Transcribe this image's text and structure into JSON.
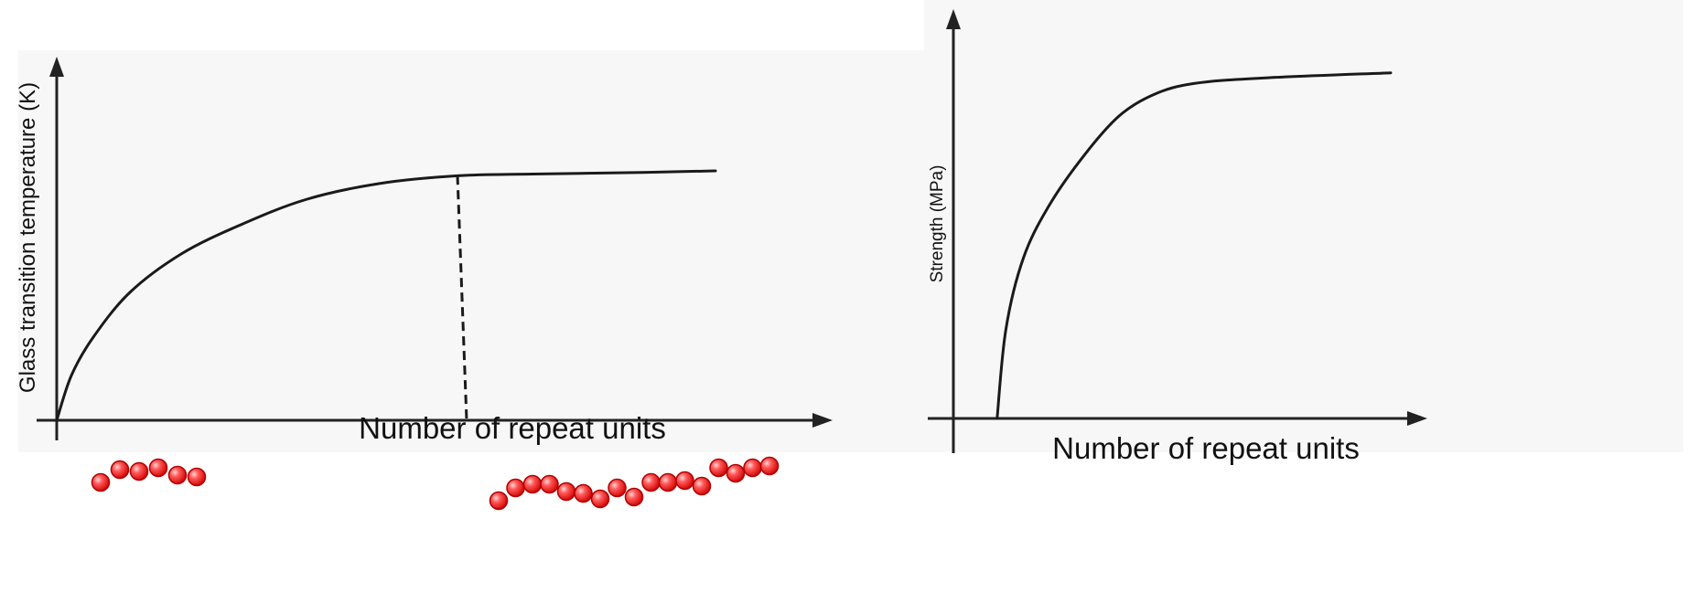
{
  "chart_data": [
    {
      "type": "line",
      "xlabel": "Number of repeat units",
      "ylabel": "Glass transition temperature (K)",
      "xlim": [
        0,
        1
      ],
      "ylim": [
        0,
        1
      ],
      "grid": false,
      "series": [
        {
          "x": [
            0.0,
            0.02,
            0.05,
            0.1,
            0.17,
            0.25,
            0.34,
            0.44,
            0.55,
            0.65,
            0.8,
            0.9
          ],
          "y": [
            0.0,
            0.14,
            0.26,
            0.4,
            0.52,
            0.61,
            0.69,
            0.74,
            0.765,
            0.77,
            0.775,
            0.78
          ]
        }
      ],
      "annotations": [
        {
          "type": "vertical-dashed-line",
          "x": 0.55
        },
        {
          "type": "bead-chain",
          "label": "short chain",
          "beads": 6
        },
        {
          "type": "bead-chain",
          "label": "long chain",
          "beads": 17
        }
      ]
    },
    {
      "type": "line",
      "xlabel": "Number of repeat units",
      "ylabel": "Strength (MPa)",
      "xlim": [
        0,
        1
      ],
      "ylim": [
        0,
        1
      ],
      "grid": false,
      "series": [
        {
          "x": [
            0.1,
            0.12,
            0.16,
            0.22,
            0.3,
            0.38,
            0.46,
            0.55,
            0.7,
            1.0
          ],
          "y": [
            0.0,
            0.25,
            0.45,
            0.6,
            0.74,
            0.85,
            0.91,
            0.94,
            0.955,
            0.97
          ]
        }
      ]
    }
  ]
}
